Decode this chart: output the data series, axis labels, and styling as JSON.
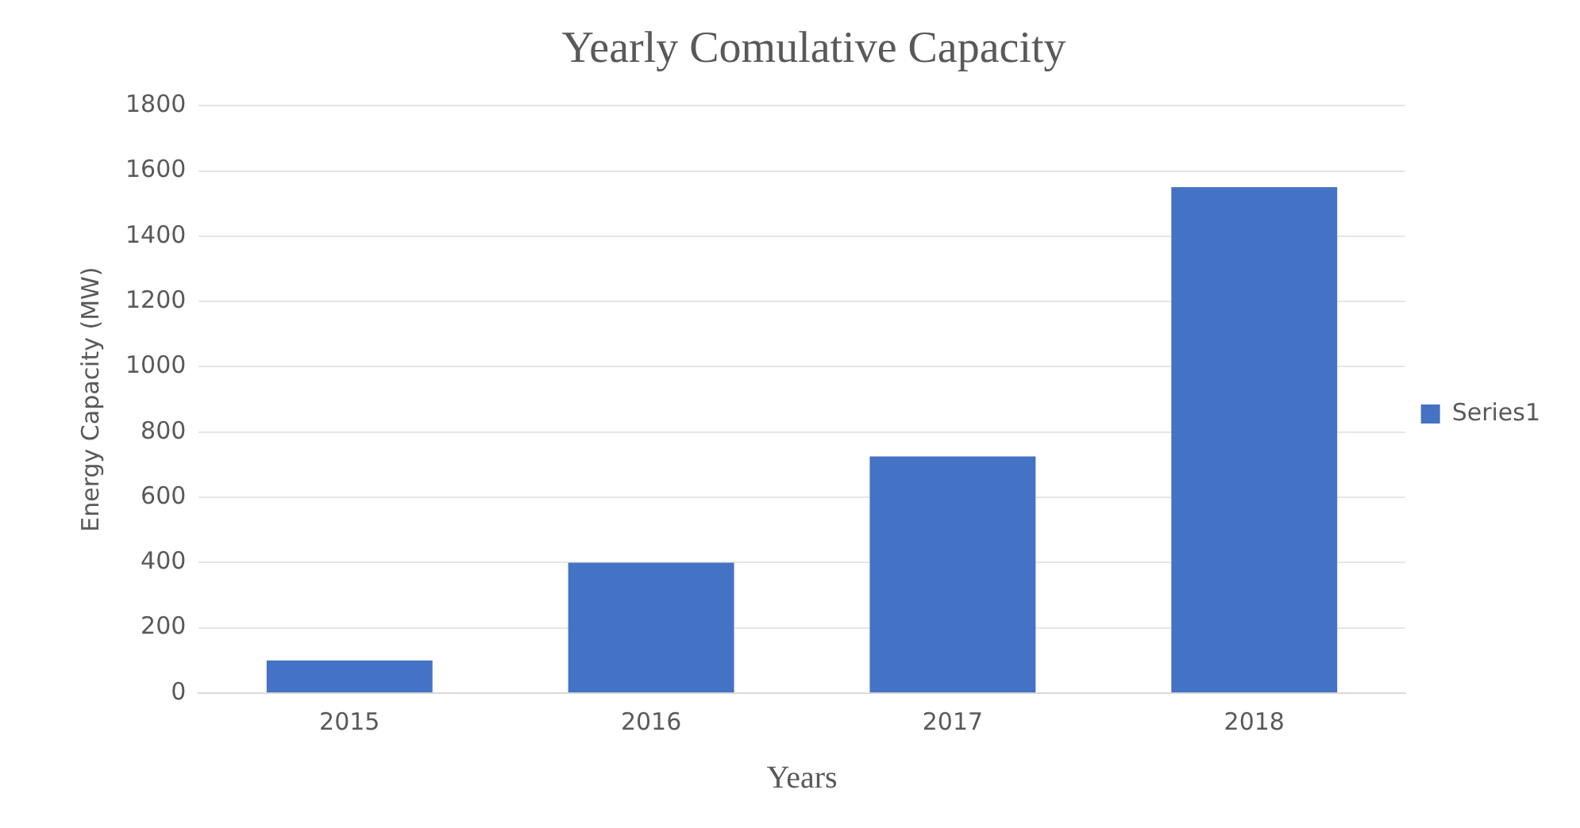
{
  "chart_data": {
    "type": "bar",
    "title": "Yearly Comulative Capacity",
    "xlabel": "Years",
    "ylabel": "Energy Capacity (MW)",
    "categories": [
      "2015",
      "2016",
      "2017",
      "2018"
    ],
    "series": [
      {
        "name": "Series1",
        "color": "#4472c4",
        "values": [
          100,
          400,
          725,
          1550
        ]
      }
    ],
    "ylim": [
      0,
      1800
    ],
    "yticks": [
      0,
      200,
      400,
      600,
      800,
      1000,
      1200,
      1400,
      1600,
      1800
    ],
    "grid": "y",
    "legend": "right"
  }
}
